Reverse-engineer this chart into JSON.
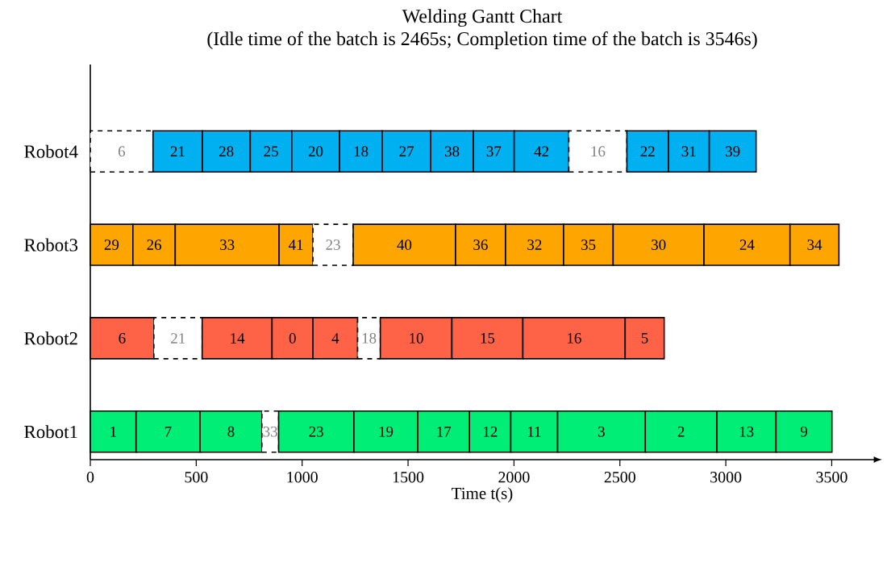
{
  "chart_data": {
    "type": "bar",
    "orientation": "horizontal",
    "stacked": true,
    "title": "Welding Gantt Chart",
    "subtitle": "(Idle time of the batch is 2465s; Completion time of the batch is 3546s)",
    "xlabel": "Time t(s)",
    "categories": [
      "Robot4",
      "Robot3",
      "Robot2",
      "Robot1"
    ],
    "xlim": [
      0,
      3700
    ],
    "xticks": [
      0,
      500,
      1000,
      1500,
      2000,
      2500,
      3000,
      3500
    ],
    "series": [
      {
        "values": [
          296,
          201,
          300,
          216
        ],
        "colors": [
          "#ffffff",
          "#ffa500",
          "#ff6347",
          "#00ee76"
        ]
      },
      {
        "values": [
          233,
          200,
          228,
          302
        ],
        "colors": [
          "#00b0f0",
          "#ffa500",
          "#ffffff",
          "#00ee76"
        ]
      },
      {
        "values": [
          226,
          490,
          330,
          292
        ],
        "colors": [
          "#00b0f0",
          "#ffa500",
          "#ff6347",
          "#00ee76"
        ]
      },
      {
        "values": [
          196,
          160,
          193,
          79
        ],
        "colors": [
          "#00b0f0",
          "#ffa500",
          "#ff6347",
          "#ffffff"
        ]
      },
      {
        "values": [
          226,
          190,
          211,
          355
        ],
        "colors": [
          "#00b0f0",
          "#ffffff",
          "#ff6347",
          "#00ee76"
        ]
      },
      {
        "values": [
          201,
          483,
          107,
          302
        ],
        "colors": [
          "#00b0f0",
          "#ffa500",
          "#ffffff",
          "#00ee76"
        ]
      },
      {
        "values": [
          229,
          236,
          338,
          244
        ],
        "colors": [
          "#00b0f0",
          "#ffa500",
          "#ff6347",
          "#00ee76"
        ]
      },
      {
        "values": [
          201,
          274,
          335,
          195
        ],
        "colors": [
          "#00b0f0",
          "#ffa500",
          "#ff6347",
          "#00ee76"
        ]
      },
      {
        "values": [
          193,
          234,
          483,
          221
        ],
        "colors": [
          "#00b0f0",
          "#ffa500",
          "#ff6347",
          "#00ee76"
        ]
      },
      {
        "values": [
          258,
          429,
          184,
          414
        ],
        "colors": [
          "#00b0f0",
          "#ffa500",
          "#ff6347",
          "#00ee76"
        ]
      },
      {
        "values": [
          274,
          406,
          null,
          338
        ],
        "colors": [
          "#ffffff",
          "#ffa500",
          null,
          "#00ee76"
        ]
      },
      {
        "values": [
          196,
          231,
          null,
          279
        ],
        "colors": [
          "#00b0f0",
          "#ffa500",
          null,
          "#00ee76"
        ]
      },
      {
        "values": [
          193,
          null,
          null,
          264
        ],
        "colors": [
          "#00b0f0",
          null,
          null,
          "#00ee76"
        ]
      },
      {
        "values": [
          221,
          null,
          null,
          null
        ],
        "colors": [
          "#00b0f0",
          null,
          null,
          null
        ]
      }
    ],
    "annotations": [
      "6",
      "21",
      "28",
      "25",
      "20",
      "18",
      "27",
      "38",
      "37",
      "42",
      "16",
      "22",
      "31",
      "39",
      "29",
      "26",
      "33",
      "41",
      "23",
      "40",
      "36",
      "32",
      "35",
      "30",
      "24",
      "34",
      "6",
      "21",
      "14",
      "0",
      "4",
      "18",
      "10",
      "15",
      "16",
      "5",
      "1",
      "7",
      "8",
      "33",
      "23",
      "19",
      "17",
      "12",
      "11",
      "3",
      "2",
      "13",
      "9"
    ]
  }
}
